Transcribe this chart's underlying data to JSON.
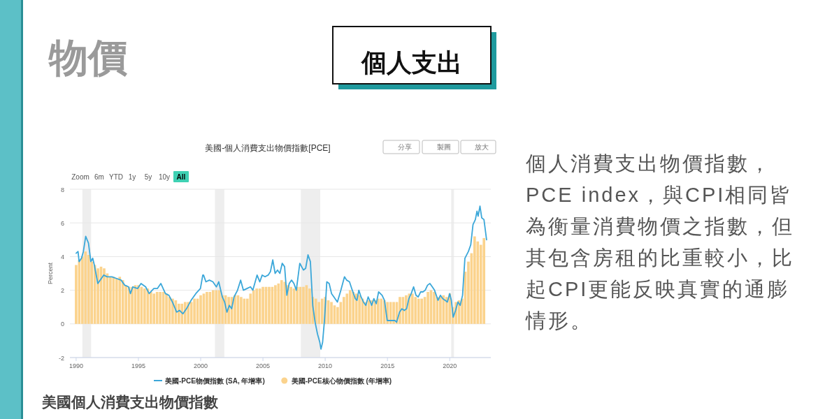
{
  "chart_data": {
    "type": "bar",
    "title": "美國-個人消費支出物價指數[PCE]",
    "ylabel": "Percent",
    "xlim": [
      1989.5,
      2023.3
    ],
    "xticks": [
      1990,
      1995,
      2000,
      2005,
      2010,
      2015,
      2020
    ],
    "ylim": [
      -2,
      8
    ],
    "yticks": [
      -2,
      0,
      2,
      4,
      6,
      8
    ],
    "grid": "y",
    "legend": "bottom",
    "bands": [
      {
        "axis": "x",
        "from": 1990.5,
        "to": 1991.2,
        "color": "#eeeeee"
      },
      {
        "axis": "x",
        "from": 2001.15,
        "to": 2001.9,
        "color": "#eeeeee"
      },
      {
        "axis": "x",
        "from": 2008.05,
        "to": 2009.6,
        "color": "#eeeeee"
      },
      {
        "axis": "x",
        "from": 2020.12,
        "to": 2020.34,
        "color": "#eeeeee"
      }
    ],
    "series": [
      {
        "name": "美國-PCE核心物價指數 (年增率)",
        "color": "#fbd38d",
        "x": [
          1990,
          1990.25,
          1990.5,
          1990.75,
          1991,
          1991.25,
          1991.5,
          1991.75,
          1992,
          1992.25,
          1992.5,
          1992.75,
          1993,
          1993.25,
          1993.5,
          1993.75,
          1994,
          1994.25,
          1994.5,
          1994.75,
          1995,
          1995.25,
          1995.5,
          1995.75,
          1996,
          1996.25,
          1996.5,
          1996.75,
          1997,
          1997.25,
          1997.5,
          1997.75,
          1998,
          1998.25,
          1998.5,
          1998.75,
          1999,
          1999.25,
          1999.5,
          1999.75,
          2000,
          2000.25,
          2000.5,
          2000.75,
          2001,
          2001.25,
          2001.5,
          2001.75,
          2002,
          2002.25,
          2002.5,
          2002.75,
          2003,
          2003.25,
          2003.5,
          2003.75,
          2004,
          2004.25,
          2004.5,
          2004.75,
          2005,
          2005.25,
          2005.5,
          2005.75,
          2006,
          2006.25,
          2006.5,
          2006.75,
          2007,
          2007.25,
          2007.5,
          2007.75,
          2008,
          2008.25,
          2008.5,
          2008.75,
          2009,
          2009.25,
          2009.5,
          2009.75,
          2010,
          2010.25,
          2010.5,
          2010.75,
          2011,
          2011.25,
          2011.5,
          2011.75,
          2012,
          2012.25,
          2012.5,
          2012.75,
          2013,
          2013.25,
          2013.5,
          2013.75,
          2014,
          2014.25,
          2014.5,
          2014.75,
          2015,
          2015.25,
          2015.5,
          2015.75,
          2016,
          2016.25,
          2016.5,
          2016.75,
          2017,
          2017.25,
          2017.5,
          2017.75,
          2018,
          2018.25,
          2018.5,
          2018.75,
          2019,
          2019.25,
          2019.5,
          2019.75,
          2020,
          2020.25,
          2020.5,
          2020.75,
          2021,
          2021.25,
          2021.5,
          2021.75,
          2022,
          2022.25,
          2022.5,
          2022.75
        ],
        "values": [
          3.5,
          3.8,
          4.0,
          4.3,
          4.1,
          3.7,
          3.5,
          3.3,
          3.4,
          3.3,
          3.0,
          2.8,
          2.8,
          2.7,
          2.8,
          2.6,
          2.3,
          2.2,
          2.2,
          2.3,
          2.3,
          2.2,
          2.1,
          2.1,
          1.9,
          1.8,
          1.9,
          1.9,
          1.9,
          1.8,
          1.6,
          1.5,
          1.4,
          1.2,
          1.2,
          1.3,
          1.3,
          1.3,
          1.5,
          1.5,
          1.7,
          1.8,
          1.9,
          1.9,
          2.0,
          2.0,
          2.0,
          1.7,
          1.7,
          1.6,
          1.6,
          1.7,
          1.7,
          1.6,
          1.5,
          1.5,
          1.8,
          2.0,
          2.1,
          2.1,
          2.2,
          2.2,
          2.2,
          2.2,
          2.3,
          2.4,
          2.6,
          2.5,
          2.3,
          2.2,
          2.1,
          2.2,
          2.2,
          2.2,
          2.3,
          2.1,
          1.6,
          1.5,
          1.3,
          1.5,
          1.6,
          1.4,
          1.3,
          1.1,
          1.0,
          1.3,
          1.6,
          1.8,
          2.0,
          1.9,
          1.8,
          1.7,
          1.5,
          1.3,
          1.4,
          1.4,
          1.4,
          1.5,
          1.5,
          1.4,
          1.3,
          1.3,
          1.3,
          1.3,
          1.6,
          1.6,
          1.7,
          1.8,
          1.8,
          1.6,
          1.5,
          1.5,
          1.6,
          1.9,
          2.0,
          1.9,
          1.6,
          1.6,
          1.7,
          1.6,
          1.8,
          1.0,
          1.3,
          1.4,
          1.5,
          3.1,
          3.7,
          4.2,
          5.2,
          4.9,
          4.7,
          5.1
        ]
      },
      {
        "name": "美國-PCE物價指數 (SA, 年增率)",
        "type": "line",
        "color": "#3ba7d9",
        "x": [
          1990.0,
          1990.15,
          1990.24,
          1990.43,
          1990.58,
          1990.77,
          1990.99,
          1991.18,
          1991.33,
          1991.46,
          1991.74,
          1991.93,
          1992.21,
          1992.49,
          1992.87,
          1993.24,
          1993.61,
          1993.9,
          1994.21,
          1994.36,
          1994.55,
          1994.93,
          1995.21,
          1995.58,
          1995.86,
          1996.24,
          1996.52,
          1996.8,
          1997.17,
          1997.45,
          1997.73,
          1998.07,
          1998.3,
          1998.58,
          1998.86,
          1999.23,
          1999.61,
          1999.98,
          2000.17,
          2000.23,
          2000.42,
          2000.7,
          2000.98,
          2001.26,
          2001.45,
          2001.74,
          2001.92,
          2002.11,
          2002.3,
          2002.49,
          2002.68,
          2002.96,
          2003.21,
          2003.43,
          2003.72,
          2004.0,
          2004.19,
          2004.38,
          2004.53,
          2004.75,
          2004.94,
          2005.17,
          2005.42,
          2005.6,
          2005.79,
          2005.98,
          2006.17,
          2006.36,
          2006.55,
          2006.74,
          2006.92,
          2007.11,
          2007.3,
          2007.49,
          2007.68,
          2007.96,
          2008.25,
          2008.43,
          2008.62,
          2008.81,
          2009.0,
          2009.19,
          2009.38,
          2009.57,
          2009.66,
          2009.79,
          2009.94,
          2010.13,
          2010.32,
          2010.51,
          2010.7,
          2010.98,
          2011.26,
          2011.55,
          2011.72,
          2011.95,
          2012.13,
          2012.42,
          2012.55,
          2012.7,
          2012.88,
          2013.07,
          2013.26,
          2013.45,
          2013.63,
          2013.73,
          2013.91,
          2014.1,
          2014.29,
          2014.57,
          2014.76,
          2014.98,
          2015.13,
          2015.32,
          2015.6,
          2015.73,
          2015.97,
          2016.16,
          2016.35,
          2016.54,
          2016.72,
          2016.91,
          2017.1,
          2017.29,
          2017.47,
          2017.66,
          2017.85,
          2018.03,
          2018.22,
          2018.41,
          2018.6,
          2018.78,
          2019.06,
          2019.25,
          2019.44,
          2019.63,
          2019.81,
          2020.0,
          2020.13,
          2020.28,
          2020.47,
          2020.66,
          2020.84,
          2021.03,
          2021.22,
          2021.5,
          2021.69,
          2021.87,
          2022.06,
          2022.19,
          2022.28,
          2022.43,
          2022.57,
          2022.75,
          2022.96
        ],
        "values": [
          4.2,
          4.3,
          3.7,
          3.9,
          4.3,
          5.2,
          4.8,
          3.7,
          3.9,
          3.5,
          2.4,
          2.6,
          2.9,
          2.8,
          2.8,
          2.7,
          2.6,
          2.3,
          2.2,
          1.8,
          2.2,
          2.1,
          2.4,
          2.2,
          1.8,
          2.1,
          2.1,
          2.4,
          1.8,
          1.7,
          1.3,
          0.7,
          0.8,
          0.6,
          0.9,
          1.4,
          1.8,
          2.1,
          2.9,
          2.9,
          2.5,
          2.6,
          2.5,
          2.2,
          2.5,
          1.6,
          1.3,
          0.7,
          1.1,
          0.9,
          1.6,
          2.0,
          2.6,
          2.0,
          2.1,
          2.2,
          2.0,
          2.5,
          2.9,
          2.5,
          2.9,
          2.8,
          2.9,
          3.1,
          3.8,
          3.0,
          3.2,
          3.0,
          3.6,
          3.4,
          1.7,
          2.4,
          2.6,
          2.4,
          2.0,
          3.6,
          3.2,
          3.3,
          4.1,
          3.7,
          1.1,
          0.1,
          -0.6,
          -1.1,
          -1.5,
          -1.1,
          0.2,
          2.5,
          2.4,
          1.8,
          1.6,
          1.3,
          2.0,
          2.8,
          2.6,
          2.5,
          2.1,
          1.5,
          1.4,
          2.0,
          1.6,
          1.3,
          1.1,
          1.6,
          1.3,
          1.1,
          1.5,
          1.2,
          1.9,
          1.7,
          1.4,
          0.2,
          0.2,
          0.2,
          0.2,
          0.1,
          0.7,
          0.9,
          0.8,
          0.9,
          1.5,
          1.8,
          2.2,
          1.7,
          1.6,
          1.9,
          1.9,
          2.0,
          2.3,
          2.4,
          2.2,
          2.0,
          1.4,
          1.7,
          1.5,
          1.4,
          1.3,
          1.8,
          1.4,
          0.4,
          0.8,
          1.3,
          1.1,
          1.7,
          3.9,
          4.3,
          4.7,
          5.9,
          6.2,
          6.7,
          6.4,
          7.0,
          6.3,
          6.2,
          5.0
        ]
      }
    ],
    "annotations": [
      "物價",
      "個人支出",
      "個人消費支出物價指數，PCE index，與CPI相同皆為衡量消費物價之指數，但其包含房租的比重較小，比起CPI更能反映真實的通膨情形。",
      "美國個人消費支出物價指數",
      "Zoom",
      "6m",
      "YTD",
      "1y",
      "5y",
      "10y",
      "All",
      "分享",
      "製圖",
      "放大"
    ]
  }
}
